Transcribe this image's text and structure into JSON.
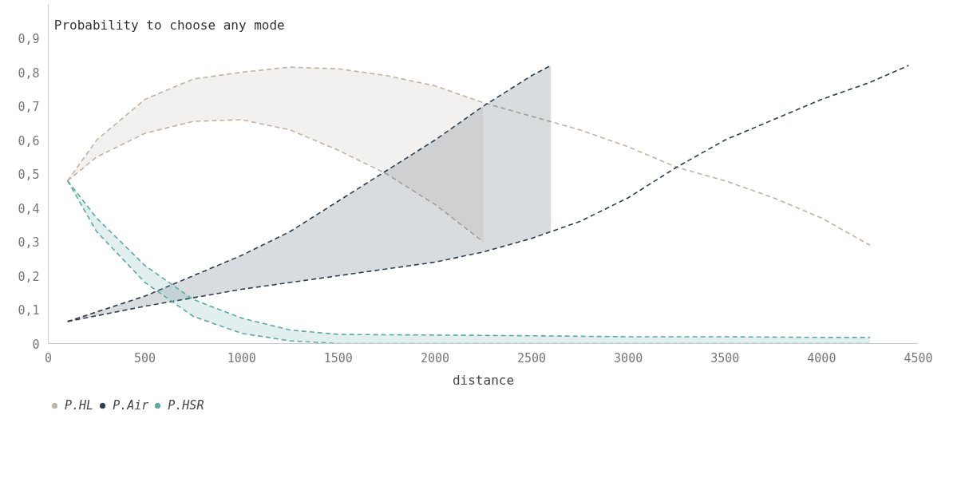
{
  "chart_data": {
    "type": "line",
    "title": "Probability to choose any mode",
    "xlabel": "distance",
    "xlim": [
      0,
      4500
    ],
    "xticks": [
      0,
      500,
      1000,
      1500,
      2000,
      2500,
      3000,
      3500,
      4000,
      4500
    ],
    "ylim": [
      0,
      1
    ],
    "yticks": [
      0,
      {
        "value": 0.1,
        "label": "0,1"
      },
      {
        "value": 0.2,
        "label": "0,2"
      },
      {
        "value": 0.3,
        "label": "0,3"
      },
      {
        "value": 0.4,
        "label": "0,4"
      },
      {
        "value": 0.5,
        "label": "0,5"
      },
      {
        "value": 0.6,
        "label": "0,6"
      },
      {
        "value": 0.7,
        "label": "0,7"
      },
      {
        "value": 0.8,
        "label": "0,8"
      },
      {
        "value": 0.9,
        "label": "0,9"
      }
    ],
    "grid": false,
    "legend": "bottom left",
    "line_style": "dashed",
    "marker": "none",
    "series": [
      {
        "name": "P.HL",
        "color": "#bfb3a4",
        "x": [
          100,
          250,
          500,
          750,
          1000,
          1250,
          1500,
          1750,
          2000,
          2250,
          2500,
          2750,
          3000,
          3250,
          3500,
          3750,
          4000,
          4250
        ],
        "values": [
          0.48,
          0.6,
          0.72,
          0.78,
          0.8,
          0.815,
          0.81,
          0.79,
          0.76,
          0.71,
          0.67,
          0.63,
          0.58,
          0.52,
          0.48,
          0.43,
          0.37,
          0.29
        ],
        "lower": [
          0.48,
          0.55,
          0.62,
          0.655,
          0.66,
          0.63,
          0.57,
          0.5,
          0.41,
          0.3,
          null,
          null,
          null,
          null,
          null,
          null,
          null,
          null
        ],
        "upper": [
          0.48,
          0.6,
          0.72,
          0.78,
          0.8,
          0.815,
          0.81,
          0.79,
          0.76,
          0.71,
          null,
          null,
          null,
          null,
          null,
          null,
          null,
          null
        ]
      },
      {
        "color": "#bfb3a4",
        "x": [
          100,
          250,
          500,
          750,
          1000,
          1250,
          1500,
          1750,
          2000,
          2250
        ],
        "values": [
          0.48,
          0.55,
          0.62,
          0.655,
          0.66,
          0.63,
          0.57,
          0.5,
          0.41,
          0.3
        ]
      },
      {
        "name": "P.Air",
        "color": "#2f3e4e",
        "x": [
          100,
          500,
          750,
          1000,
          1250,
          1500,
          1750,
          2000,
          2250,
          2500,
          2600,
          2750,
          3000,
          3250,
          3500,
          3750,
          4000,
          4250,
          4450
        ],
        "values": [
          0.065,
          0.11,
          0.135,
          0.16,
          0.18,
          0.2,
          0.22,
          0.24,
          0.27,
          0.31,
          0.33,
          0.36,
          0.43,
          0.52,
          0.6,
          0.66,
          0.72,
          0.77,
          0.82
        ],
        "lower": [
          0.065,
          0.11,
          0.135,
          0.16,
          0.18,
          0.2,
          0.22,
          0.24,
          0.27,
          0.31,
          0.33,
          null,
          null,
          null,
          null,
          null,
          null,
          null,
          null
        ],
        "upper": [
          0.065,
          0.14,
          0.2,
          0.26,
          0.33,
          0.42,
          0.51,
          0.6,
          0.7,
          0.79,
          0.82,
          null,
          null,
          null,
          null,
          null,
          null,
          null,
          null
        ]
      },
      {
        "color": "#2f3e4e",
        "x": [
          100,
          500,
          750,
          1000,
          1250,
          1500,
          1750,
          2000,
          2250,
          2500,
          2600
        ],
        "values": [
          0.065,
          0.14,
          0.2,
          0.26,
          0.33,
          0.42,
          0.51,
          0.6,
          0.7,
          0.79,
          0.82
        ]
      },
      {
        "name": "P.HSR",
        "color": "#5aaba4",
        "x": [
          100,
          250,
          500,
          750,
          1000,
          1250,
          1500,
          2000,
          2500,
          3000,
          3500,
          4000,
          4250
        ],
        "values": [
          0.48,
          0.37,
          0.23,
          0.13,
          0.075,
          0.04,
          0.027,
          0.025,
          0.023,
          0.02,
          0.02,
          0.018,
          0.018
        ],
        "lower": [
          0.48,
          0.33,
          0.18,
          0.08,
          0.03,
          0.008,
          0,
          0,
          0,
          0,
          0,
          0,
          0
        ],
        "upper": [
          0.48,
          0.37,
          0.23,
          0.13,
          0.075,
          0.04,
          0.027,
          0.025,
          0.023,
          0.02,
          0.02,
          0.018,
          0.018
        ]
      },
      {
        "color": "#5aaba4",
        "x": [
          100,
          250,
          500,
          750,
          1000,
          1250,
          1500,
          2000,
          2500,
          3000,
          3500,
          4000,
          4250
        ],
        "values": [
          0.48,
          0.33,
          0.18,
          0.08,
          0.03,
          0.008,
          0,
          0,
          0,
          0,
          0,
          0,
          0
        ]
      }
    ]
  }
}
